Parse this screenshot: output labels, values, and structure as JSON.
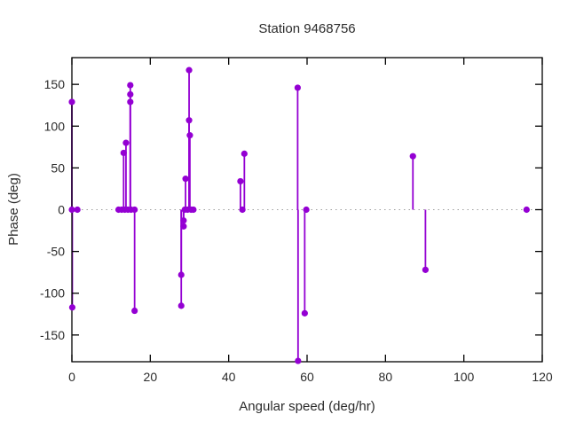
{
  "title": "Station 9468756",
  "chart_data": {
    "type": "scatter",
    "style": "impulses-with-points",
    "title": "Station 9468756",
    "xlabel": "Angular speed (deg/hr)",
    "ylabel": "Phase (deg)",
    "xlim": [
      0,
      120
    ],
    "ylim": [
      -182,
      182
    ],
    "xticks": [
      0,
      20,
      40,
      60,
      80,
      100,
      120
    ],
    "yticks": [
      -150,
      -100,
      -50,
      0,
      50,
      100,
      150
    ],
    "grid": false,
    "zero_line": true,
    "legend": "none",
    "points": [
      {
        "x": 0.0,
        "y": 129
      },
      {
        "x": 0.1,
        "y": -117
      },
      {
        "x": 0.0,
        "y": 0
      },
      {
        "x": 1.4,
        "y": 0
      },
      {
        "x": 11.9,
        "y": 0
      },
      {
        "x": 12.7,
        "y": 0
      },
      {
        "x": 13.2,
        "y": 68
      },
      {
        "x": 13.5,
        "y": 0
      },
      {
        "x": 13.8,
        "y": 80
      },
      {
        "x": 14.3,
        "y": 0
      },
      {
        "x": 14.9,
        "y": 149
      },
      {
        "x": 14.9,
        "y": 138
      },
      {
        "x": 14.9,
        "y": 129
      },
      {
        "x": 15.1,
        "y": 0
      },
      {
        "x": 16.0,
        "y": 0
      },
      {
        "x": 16.0,
        "y": -121
      },
      {
        "x": 27.9,
        "y": -78
      },
      {
        "x": 27.9,
        "y": -115
      },
      {
        "x": 28.5,
        "y": -13
      },
      {
        "x": 28.5,
        "y": -20
      },
      {
        "x": 28.8,
        "y": 0
      },
      {
        "x": 29.0,
        "y": 37
      },
      {
        "x": 29.5,
        "y": 0
      },
      {
        "x": 29.9,
        "y": 167
      },
      {
        "x": 29.9,
        "y": 107
      },
      {
        "x": 30.1,
        "y": 89
      },
      {
        "x": 30.4,
        "y": 0
      },
      {
        "x": 31.0,
        "y": 0
      },
      {
        "x": 43.0,
        "y": 34
      },
      {
        "x": 43.5,
        "y": 0
      },
      {
        "x": 44.0,
        "y": 67
      },
      {
        "x": 57.6,
        "y": 146
      },
      {
        "x": 57.7,
        "y": -181
      },
      {
        "x": 59.4,
        "y": -124
      },
      {
        "x": 59.8,
        "y": 0
      },
      {
        "x": 87.0,
        "y": 64
      },
      {
        "x": 90.2,
        "y": -72
      },
      {
        "x": 116.0,
        "y": 0
      }
    ]
  },
  "colors": {
    "series": "#9400d3",
    "zero_line": "#9e9e9e",
    "frame": "#000000",
    "text": "#2b2b2b",
    "background": "#ffffff"
  }
}
